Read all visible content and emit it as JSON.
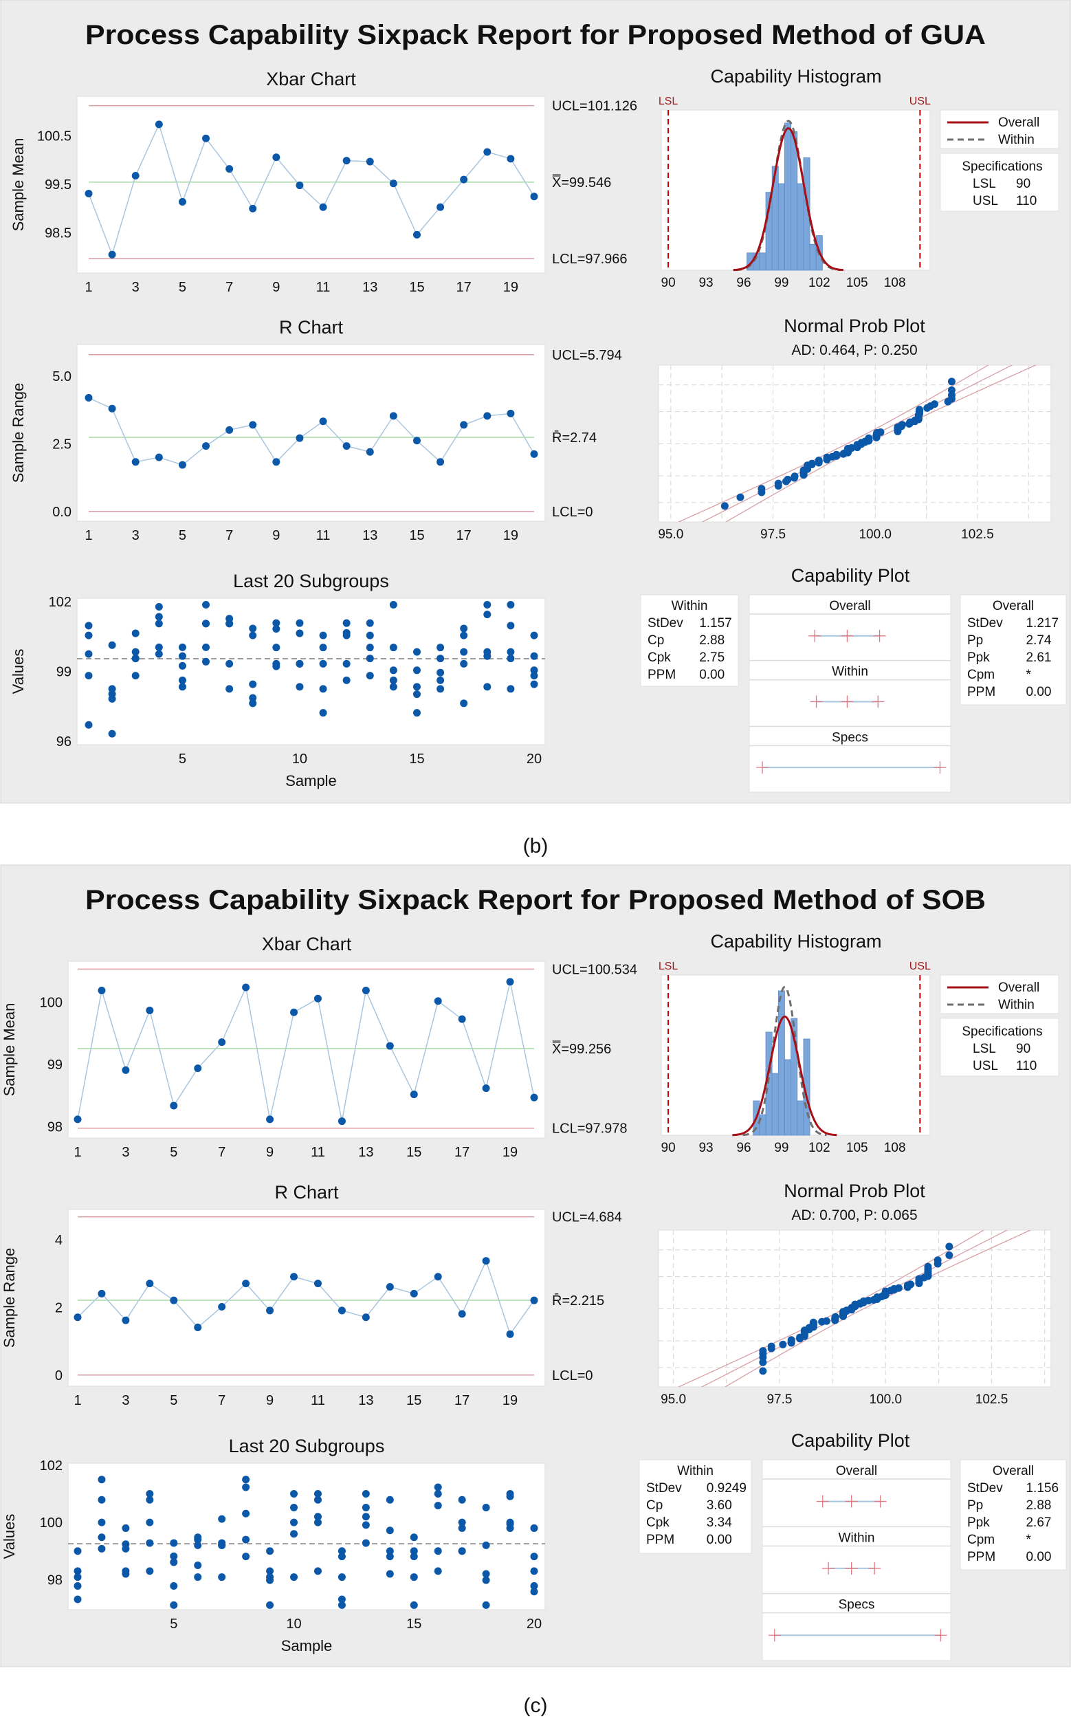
{
  "chart_data": [
    {
      "title": "Process Capability Sixpack Report for Proposed Method of GUA",
      "caption": "(b)",
      "xbar": {
        "type": "line",
        "title": "Xbar Chart",
        "ylabel": "Sample Mean",
        "ucl": 101.126,
        "center": 99.546,
        "lcl": 97.966,
        "ucl_label": "UCL=101.126",
        "center_label": "X̿=99.546",
        "lcl_label": "LCL=97.966",
        "ylim": [
          97.67,
          101.32
        ],
        "yticks": [
          "98.5",
          "99.5",
          "100.5"
        ],
        "xticks": [
          1,
          3,
          5,
          7,
          9,
          11,
          13,
          15,
          17,
          19
        ],
        "values": [
          99.31,
          98.05,
          99.68,
          100.74,
          99.14,
          100.45,
          99.82,
          99.0,
          100.06,
          99.48,
          99.03,
          99.99,
          99.97,
          99.52,
          98.46,
          99.03,
          99.6,
          100.17,
          100.03,
          99.25
        ]
      },
      "r_chart": {
        "type": "line",
        "title": "R Chart",
        "ylabel": "Sample Range",
        "ucl": 5.794,
        "center": 2.74,
        "lcl": 0,
        "ucl_label": "UCL=5.794",
        "center_label": "R̄=2.74",
        "lcl_label": "LCL=0",
        "ylim": [
          -0.36,
          6.17
        ],
        "yticks": [
          "0.0",
          "2.5",
          "5.0"
        ],
        "xticks": [
          1,
          3,
          5,
          7,
          9,
          11,
          13,
          15,
          17,
          19
        ],
        "values": [
          4.2,
          3.8,
          1.83,
          2.0,
          1.72,
          2.42,
          3.01,
          3.2,
          1.83,
          2.71,
          3.33,
          2.42,
          2.2,
          3.53,
          2.62,
          1.83,
          3.2,
          3.53,
          3.62,
          2.12
        ]
      },
      "subgroups": {
        "type": "scatter",
        "title": "Last 20 Subgroups",
        "ylabel": "Values",
        "xlabel": "Sample",
        "mean": 99.546,
        "ylim": [
          95.85,
          102.15
        ],
        "yticks": [
          "96",
          "99",
          "102"
        ],
        "xticks": [
          5,
          10,
          15,
          20
        ],
        "values": [
          [
            100.97,
            100.55,
            99.75,
            98.82,
            96.7
          ],
          [
            100.13,
            98.25,
            98.03,
            97.82,
            96.32
          ],
          [
            100.64,
            99.84,
            99.56,
            99.56,
            98.82
          ],
          [
            101.78,
            101.35,
            101.06,
            100.04,
            99.75
          ],
          [
            100.04,
            99.66,
            99.24,
            98.62,
            98.34
          ],
          [
            101.87,
            101.06,
            101.06,
            100.04,
            99.42
          ],
          [
            101.27,
            101.06,
            101.06,
            99.33,
            98.25
          ],
          [
            100.85,
            100.55,
            98.45,
            97.86,
            97.63
          ],
          [
            101.08,
            100.83,
            100.03,
            99.33,
            99.22
          ],
          [
            101.08,
            100.64,
            99.33,
            99.33,
            98.34
          ],
          [
            100.55,
            100.03,
            99.33,
            98.25,
            97.22
          ],
          [
            101.08,
            100.66,
            100.55,
            99.33,
            98.62
          ],
          [
            101.08,
            100.55,
            100.03,
            99.56,
            98.82
          ],
          [
            101.87,
            100.03,
            99.05,
            98.62,
            98.34
          ],
          [
            99.84,
            99.05,
            98.34,
            98.02,
            97.22
          ],
          [
            100.03,
            99.56,
            98.95,
            98.62,
            98.25
          ],
          [
            100.85,
            100.55,
            99.84,
            99.33,
            97.63
          ],
          [
            101.87,
            101.45,
            99.84,
            99.66,
            98.34
          ],
          [
            101.87,
            100.97,
            99.84,
            99.56,
            98.25
          ],
          [
            100.55,
            99.66,
            99.05,
            98.82,
            98.45
          ]
        ]
      },
      "histogram": {
        "type": "bar",
        "title": "Capability Histogram",
        "lsl_label": "LSL",
        "usl_label": "USL",
        "lsl": 90,
        "usl": 110,
        "xlim": [
          89.45,
          110.8
        ],
        "ylim": [
          0,
          18.5
        ],
        "xticks": [
          90,
          93,
          96,
          99,
          102,
          105,
          108
        ],
        "bin_start": 96.25,
        "bin_width": 0.5,
        "counts": [
          2,
          2,
          2,
          9,
          12,
          10,
          17,
          16,
          10,
          13,
          3,
          4
        ],
        "legend": [
          "Overall",
          "Within"
        ],
        "specs_title": "Specifications",
        "specs": [
          {
            "label": "LSL",
            "value": "90"
          },
          {
            "label": "USL",
            "value": "110"
          }
        ],
        "colors": {
          "bars": "#7aa6dc",
          "overall": "#a50f15",
          "within": "#6e6e6e",
          "spec": "#c00000"
        }
      },
      "prob_plot": {
        "type": "scatter",
        "title": "Normal Prob Plot",
        "subtitle": "AD: 0.464, P: 0.250",
        "xlim": [
          94.7,
          104.3
        ],
        "xticks": [
          "95.0",
          "97.5",
          "100.0",
          "102.5"
        ],
        "percent_grid": [
          1,
          10,
          50,
          90,
          99
        ]
      },
      "capability_plot": {
        "title": "Capability Plot",
        "sections": [
          "Overall",
          "Within",
          "Specs"
        ],
        "within": {
          "title": "Within",
          "rows": [
            [
              "StDev",
              "1.157"
            ],
            [
              "Cp",
              "2.88"
            ],
            [
              "Cpk",
              "2.75"
            ],
            [
              "PPM",
              "0.00"
            ]
          ]
        },
        "overall": {
          "title": "Overall",
          "rows": [
            [
              "StDev",
              "1.217"
            ],
            [
              "Pp",
              "2.74"
            ],
            [
              "Ppk",
              "2.61"
            ],
            [
              "Cpm",
              "*"
            ],
            [
              "PPM",
              "0.00"
            ]
          ]
        }
      }
    },
    {
      "title": "Process Capability Sixpack Report for Proposed Method of SOB",
      "caption": "(c)",
      "xbar": {
        "type": "line",
        "title": "Xbar Chart",
        "ylabel": "Sample Mean",
        "ucl": 100.534,
        "center": 99.256,
        "lcl": 97.978,
        "ucl_label": "UCL=100.534",
        "center_label": "X̿=99.256",
        "lcl_label": "LCL=97.978",
        "ylim": [
          97.82,
          100.66
        ],
        "yticks": [
          "98",
          "99",
          "100"
        ],
        "xticks": [
          1,
          3,
          5,
          7,
          9,
          11,
          13,
          15,
          17,
          19
        ],
        "values": [
          98.12,
          100.19,
          98.91,
          99.87,
          98.34,
          98.94,
          99.36,
          100.24,
          98.12,
          99.84,
          100.06,
          98.09,
          100.19,
          99.3,
          98.52,
          100.02,
          99.73,
          98.62,
          100.33,
          98.47
        ]
      },
      "r_chart": {
        "type": "line",
        "title": "R Chart",
        "ylabel": "Sample Range",
        "ucl": 4.684,
        "center": 2.215,
        "lcl": 0,
        "ucl_label": "UCL=4.684",
        "center_label": "R̄=2.215",
        "lcl_label": "LCL=0",
        "ylim": [
          -0.33,
          4.9
        ],
        "yticks": [
          "0",
          "2",
          "4"
        ],
        "xticks": [
          1,
          3,
          5,
          7,
          9,
          11,
          13,
          15,
          17,
          19
        ],
        "values": [
          1.71,
          2.41,
          1.62,
          2.71,
          2.21,
          1.41,
          2.02,
          2.71,
          1.91,
          2.91,
          2.71,
          1.91,
          1.71,
          2.61,
          2.41,
          2.91,
          1.81,
          3.38,
          1.21,
          2.21
        ]
      },
      "subgroups": {
        "type": "scatter",
        "title": "Last 20 Subgroups",
        "ylabel": "Values",
        "xlabel": "Sample",
        "mean": 99.256,
        "ylim": [
          96.95,
          102.07
        ],
        "yticks": [
          "98",
          "100",
          "102"
        ],
        "xticks": [
          5,
          10,
          15,
          20
        ],
        "values": [
          [
            99.0,
            98.3,
            98.09,
            97.78,
            97.31
          ],
          [
            101.5,
            100.79,
            100.0,
            99.48,
            99.08
          ],
          [
            99.8,
            99.24,
            99.08,
            98.3,
            98.2
          ],
          [
            101.0,
            100.79,
            100.0,
            99.28,
            98.3
          ],
          [
            99.28,
            98.82,
            98.61,
            97.78,
            97.11
          ],
          [
            99.48,
            99.4,
            99.2,
            98.5,
            98.09
          ],
          [
            100.12,
            99.28,
            99.2,
            99.2,
            98.09
          ],
          [
            101.5,
            101.23,
            100.31,
            99.4,
            98.81
          ],
          [
            99.0,
            98.3,
            98.09,
            97.98,
            97.11
          ],
          [
            101.0,
            100.52,
            100.0,
            99.6,
            98.09
          ],
          [
            101.0,
            100.79,
            100.2,
            100.0,
            98.3
          ],
          [
            99.0,
            98.81,
            98.09,
            97.31,
            97.11
          ],
          [
            101.0,
            100.52,
            100.2,
            99.91,
            99.28
          ],
          [
            100.79,
            99.72,
            99.0,
            98.81,
            98.2
          ],
          [
            99.48,
            99.0,
            98.81,
            98.09,
            97.11
          ],
          [
            101.23,
            101.0,
            100.59,
            99.0,
            98.3
          ],
          [
            100.79,
            100.0,
            99.8,
            99.0,
            99.0
          ],
          [
            100.52,
            99.2,
            98.2,
            97.98,
            97.11
          ],
          [
            101.0,
            100.91,
            100.0,
            99.94,
            99.8
          ],
          [
            99.8,
            98.81,
            98.3,
            97.78,
            97.58
          ]
        ]
      },
      "histogram": {
        "type": "bar",
        "title": "Capability Histogram",
        "lsl_label": "LSL",
        "usl_label": "USL",
        "lsl": 90,
        "usl": 110,
        "xlim": [
          89.45,
          110.8
        ],
        "ylim": [
          0,
          23.3
        ],
        "xticks": [
          90,
          93,
          96,
          99,
          102,
          105,
          108
        ],
        "bin_start": 96.75,
        "bin_width": 0.5,
        "counts": [
          5,
          3,
          15,
          9,
          21,
          11,
          17,
          5,
          14
        ],
        "legend": [
          "Overall",
          "Within"
        ],
        "specs_title": "Specifications",
        "specs": [
          {
            "label": "LSL",
            "value": "90"
          },
          {
            "label": "USL",
            "value": "110"
          }
        ],
        "colors": {
          "bars": "#7aa6dc",
          "overall": "#a50f15",
          "within": "#6e6e6e",
          "spec": "#c00000"
        }
      },
      "prob_plot": {
        "type": "scatter",
        "title": "Normal Prob Plot",
        "subtitle": "AD: 0.700, P: 0.065",
        "xlim": [
          94.65,
          103.9
        ],
        "xticks": [
          "95.0",
          "97.5",
          "100.0",
          "102.5"
        ],
        "percent_grid": [
          1,
          10,
          50,
          90,
          99
        ]
      },
      "capability_plot": {
        "title": "Capability Plot",
        "sections": [
          "Overall",
          "Within",
          "Specs"
        ],
        "within": {
          "title": "Within",
          "rows": [
            [
              "StDev",
              "0.9249"
            ],
            [
              "Cp",
              "3.60"
            ],
            [
              "Cpk",
              "3.34"
            ],
            [
              "PPM",
              "0.00"
            ]
          ]
        },
        "overall": {
          "title": "Overall",
          "rows": [
            [
              "StDev",
              "1.156"
            ],
            [
              "Pp",
              "2.88"
            ],
            [
              "Ppk",
              "2.67"
            ],
            [
              "Cpm",
              "*"
            ],
            [
              "PPM",
              "0.00"
            ]
          ]
        }
      }
    }
  ]
}
